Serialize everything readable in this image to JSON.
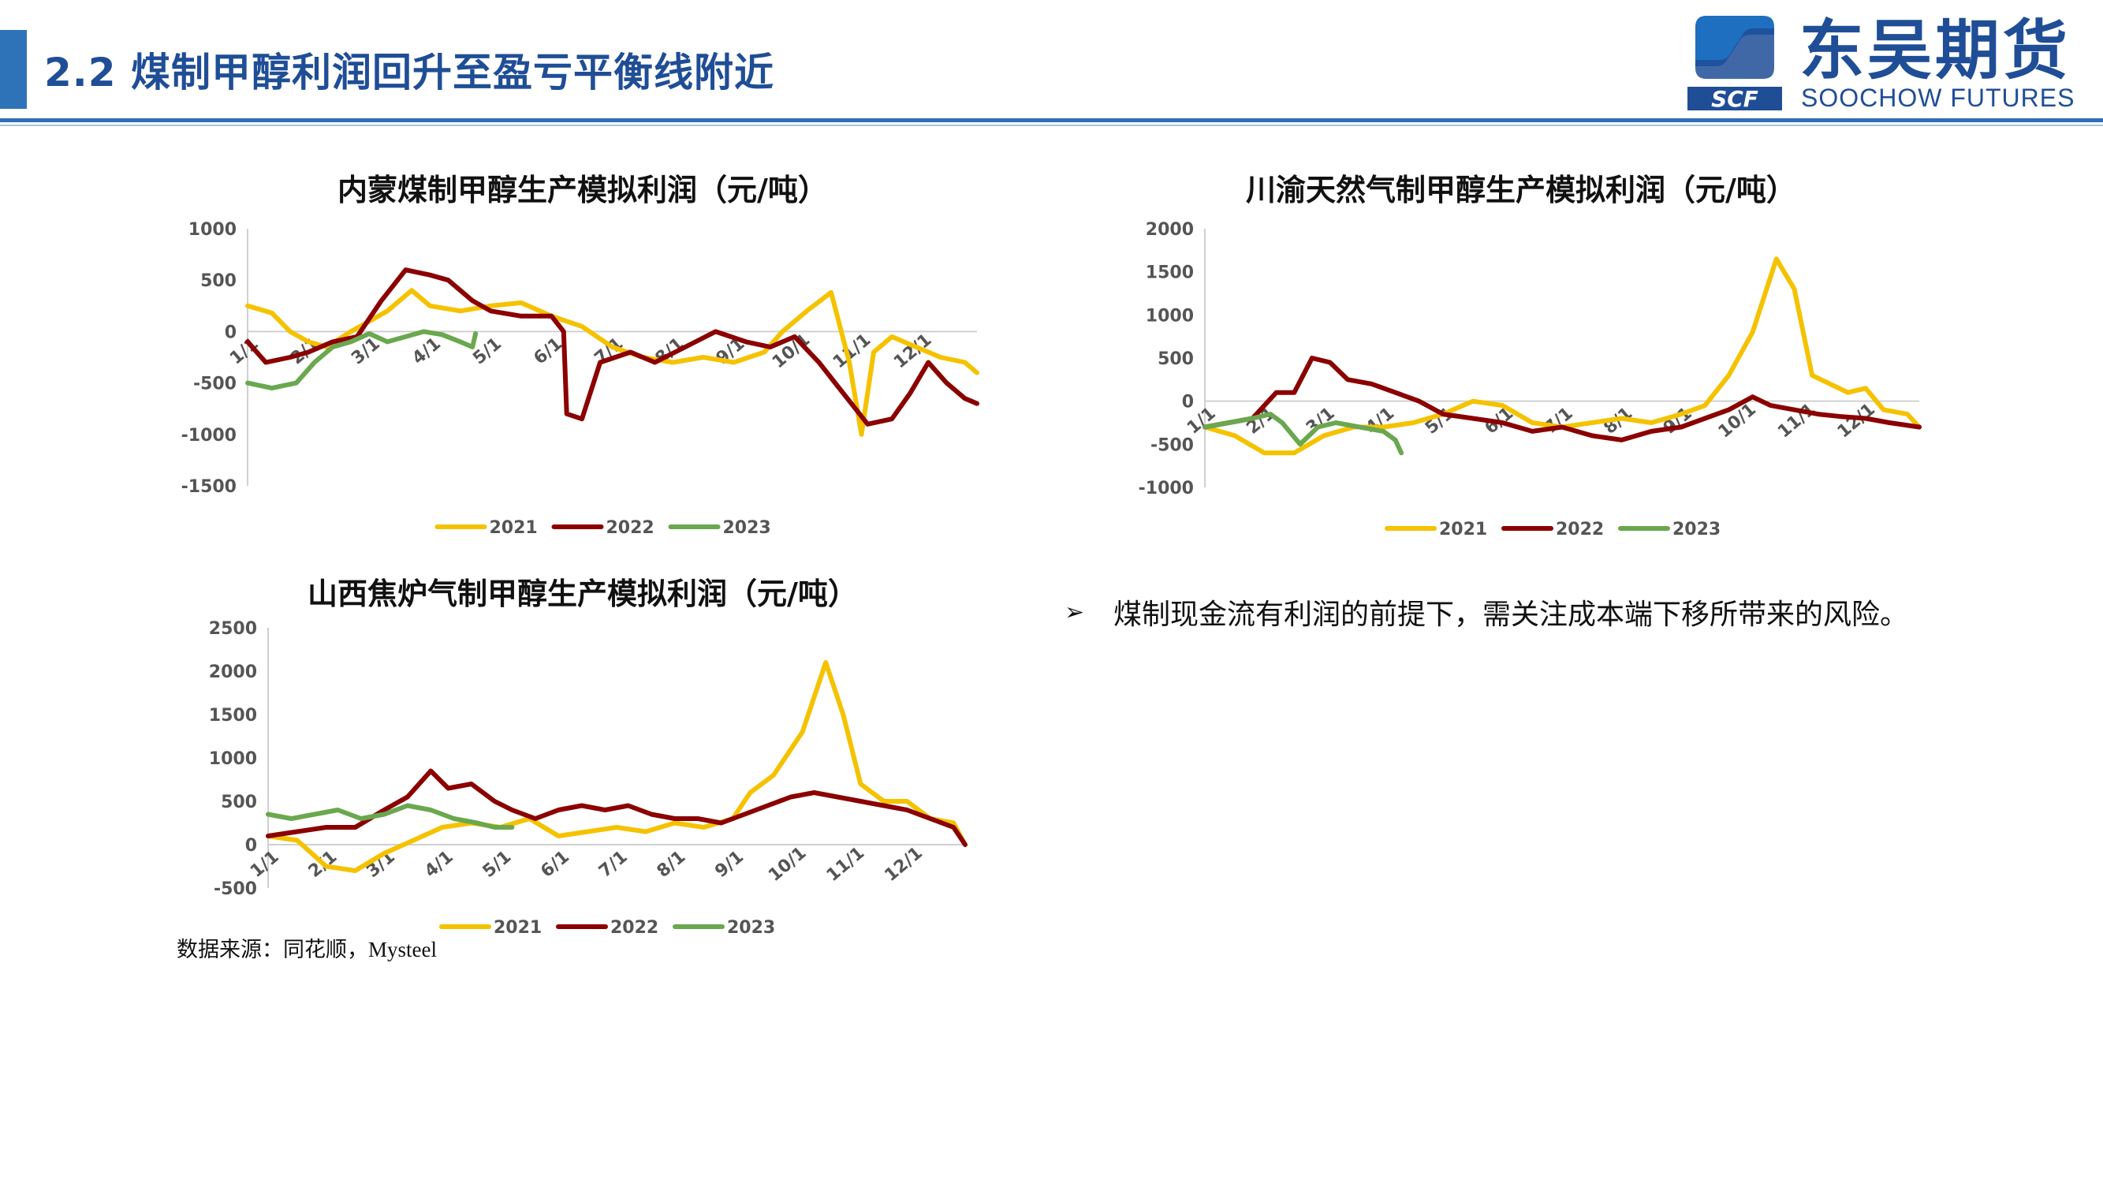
{
  "header": {
    "title": "2.2 煤制甲醇利润回升至盈亏平衡线附近",
    "logo_cn": "东吴期货",
    "logo_en": "SOOCHOW FUTURES",
    "logo_mark": "SCF"
  },
  "colors": {
    "brand_blue": "#1f4e96",
    "accent": "#2e73b8",
    "series_2021": "#f5c200",
    "series_2022": "#8b0000",
    "series_2023": "#6aa84f"
  },
  "bullet": {
    "marker": "➢",
    "text": "煤制现金流有利润的前提下，需关注成本端下移所带来的风险。"
  },
  "source": "数据来源：同花顺，Mysteel",
  "chart_data": [
    {
      "id": "inner-mongolia",
      "type": "line",
      "title": "内蒙煤制甲醇生产模拟利润（元/吨）",
      "ylim": [
        -1500,
        1000
      ],
      "yticks": [
        1000,
        500,
        0,
        -500,
        -1000,
        -1500
      ],
      "ytick_labels": [
        "1000",
        "500",
        "0",
        "-500",
        "-1000",
        "-1500"
      ],
      "xlim": [
        1,
        13
      ],
      "xticks": [
        1,
        2,
        3,
        4,
        5,
        6,
        7,
        8,
        9,
        10,
        11,
        12
      ],
      "xtick_labels": [
        "1/1",
        "2/1",
        "3/1",
        "4/1",
        "5/1",
        "6/1",
        "7/1",
        "8/1",
        "9/1",
        "10/1",
        "11/1",
        "12/1"
      ],
      "grid": false,
      "legend_position": "bottom",
      "series": [
        {
          "name": "2021",
          "points": [
            [
              1,
              250
            ],
            [
              1.4,
              180
            ],
            [
              1.7,
              0
            ],
            [
              2,
              -100
            ],
            [
              2.3,
              -150
            ],
            [
              2.7,
              0
            ],
            [
              3,
              100
            ],
            [
              3.3,
              200
            ],
            [
              3.7,
              400
            ],
            [
              4,
              250
            ],
            [
              4.5,
              200
            ],
            [
              5,
              250
            ],
            [
              5.5,
              280
            ],
            [
              6,
              150
            ],
            [
              6.5,
              50
            ],
            [
              7,
              -150
            ],
            [
              7.5,
              -250
            ],
            [
              8,
              -300
            ],
            [
              8.5,
              -250
            ],
            [
              9,
              -300
            ],
            [
              9.5,
              -200
            ],
            [
              9.8,
              0
            ],
            [
              10.2,
              200
            ],
            [
              10.6,
              380
            ],
            [
              10.9,
              -300
            ],
            [
              11.1,
              -1000
            ],
            [
              11.3,
              -200
            ],
            [
              11.6,
              -50
            ],
            [
              12,
              -150
            ],
            [
              12.4,
              -250
            ],
            [
              12.8,
              -300
            ],
            [
              13,
              -400
            ]
          ]
        },
        {
          "name": "2022",
          "points": [
            [
              1,
              -100
            ],
            [
              1.3,
              -300
            ],
            [
              1.7,
              -250
            ],
            [
              2,
              -200
            ],
            [
              2.4,
              -100
            ],
            [
              2.8,
              -50
            ],
            [
              3.2,
              300
            ],
            [
              3.6,
              600
            ],
            [
              4,
              550
            ],
            [
              4.3,
              500
            ],
            [
              4.7,
              300
            ],
            [
              5,
              200
            ],
            [
              5.5,
              150
            ],
            [
              6,
              150
            ],
            [
              6.2,
              0
            ],
            [
              6.25,
              -800
            ],
            [
              6.5,
              -850
            ],
            [
              6.8,
              -300
            ],
            [
              7.3,
              -200
            ],
            [
              7.7,
              -300
            ],
            [
              8.2,
              -150
            ],
            [
              8.7,
              0
            ],
            [
              9.2,
              -100
            ],
            [
              9.6,
              -150
            ],
            [
              10,
              -50
            ],
            [
              10.4,
              -300
            ],
            [
              10.8,
              -600
            ],
            [
              11.2,
              -900
            ],
            [
              11.6,
              -850
            ],
            [
              11.9,
              -600
            ],
            [
              12.2,
              -300
            ],
            [
              12.5,
              -500
            ],
            [
              12.8,
              -650
            ],
            [
              13,
              -700
            ]
          ]
        },
        {
          "name": "2023",
          "points": [
            [
              1,
              -500
            ],
            [
              1.4,
              -550
            ],
            [
              1.8,
              -500
            ],
            [
              2.1,
              -300
            ],
            [
              2.4,
              -150
            ],
            [
              2.7,
              -100
            ],
            [
              3,
              -20
            ],
            [
              3.3,
              -100
            ],
            [
              3.6,
              -50
            ],
            [
              3.9,
              0
            ],
            [
              4.2,
              -30
            ],
            [
              4.5,
              -100
            ],
            [
              4.7,
              -150
            ],
            [
              4.75,
              -20
            ]
          ]
        }
      ]
    },
    {
      "id": "sichuan-chongqing",
      "type": "line",
      "title": "川渝天然气制甲醇生产模拟利润（元/吨）",
      "ylim": [
        -1000,
        2000
      ],
      "yticks": [
        2000,
        1500,
        1000,
        500,
        0,
        -500,
        -1000
      ],
      "ytick_labels": [
        "2000",
        "1500",
        "1000",
        "500",
        "0",
        "-500",
        "-1000"
      ],
      "xlim": [
        1,
        13
      ],
      "xticks": [
        1,
        2,
        3,
        4,
        5,
        6,
        7,
        8,
        9,
        10,
        11,
        12
      ],
      "xtick_labels": [
        "1/1",
        "2/1",
        "3/1",
        "4/1",
        "5/1",
        "6/1",
        "7/1",
        "8/1",
        "9/1",
        "10/1",
        "11/1",
        "12/1"
      ],
      "grid": false,
      "legend_position": "bottom",
      "series": [
        {
          "name": "2021",
          "points": [
            [
              1,
              -300
            ],
            [
              1.5,
              -400
            ],
            [
              2,
              -600
            ],
            [
              2.5,
              -600
            ],
            [
              3,
              -400
            ],
            [
              3.5,
              -300
            ],
            [
              4,
              -300
            ],
            [
              4.5,
              -250
            ],
            [
              5,
              -150
            ],
            [
              5.5,
              0
            ],
            [
              6,
              -50
            ],
            [
              6.5,
              -250
            ],
            [
              7,
              -300
            ],
            [
              7.5,
              -250
            ],
            [
              8,
              -200
            ],
            [
              8.5,
              -250
            ],
            [
              9,
              -150
            ],
            [
              9.4,
              -50
            ],
            [
              9.8,
              300
            ],
            [
              10.2,
              800
            ],
            [
              10.6,
              1650
            ],
            [
              10.9,
              1300
            ],
            [
              11.2,
              300
            ],
            [
              11.5,
              200
            ],
            [
              11.8,
              100
            ],
            [
              12.1,
              150
            ],
            [
              12.4,
              -100
            ],
            [
              12.8,
              -150
            ],
            [
              13,
              -300
            ]
          ]
        },
        {
          "name": "2022",
          "points": [
            [
              1,
              -300
            ],
            [
              1.4,
              -250
            ],
            [
              1.8,
              -200
            ],
            [
              2.2,
              100
            ],
            [
              2.5,
              100
            ],
            [
              2.8,
              500
            ],
            [
              3.1,
              450
            ],
            [
              3.4,
              250
            ],
            [
              3.8,
              200
            ],
            [
              4.2,
              100
            ],
            [
              4.6,
              0
            ],
            [
              5,
              -150
            ],
            [
              5.5,
              -200
            ],
            [
              6,
              -250
            ],
            [
              6.5,
              -350
            ],
            [
              7,
              -300
            ],
            [
              7.5,
              -400
            ],
            [
              8,
              -450
            ],
            [
              8.5,
              -350
            ],
            [
              9,
              -300
            ],
            [
              9.4,
              -200
            ],
            [
              9.8,
              -100
            ],
            [
              10.2,
              50
            ],
            [
              10.5,
              -50
            ],
            [
              10.9,
              -100
            ],
            [
              11.3,
              -150
            ],
            [
              11.7,
              -180
            ],
            [
              12.1,
              -200
            ],
            [
              12.5,
              -250
            ],
            [
              13,
              -300
            ]
          ]
        },
        {
          "name": "2023",
          "points": [
            [
              1,
              -300
            ],
            [
              1.4,
              -250
            ],
            [
              1.8,
              -200
            ],
            [
              2.1,
              -150
            ],
            [
              2.3,
              -250
            ],
            [
              2.6,
              -500
            ],
            [
              2.9,
              -300
            ],
            [
              3.2,
              -250
            ],
            [
              3.6,
              -300
            ],
            [
              4,
              -350
            ],
            [
              4.2,
              -450
            ],
            [
              4.3,
              -600
            ]
          ]
        }
      ]
    },
    {
      "id": "shanxi-coke-oven",
      "type": "line",
      "title": "山西焦炉气制甲醇生产模拟利润（元/吨）",
      "ylim": [
        -500,
        2500
      ],
      "yticks": [
        2500,
        2000,
        1500,
        1000,
        500,
        0,
        -500
      ],
      "ytick_labels": [
        "2500",
        "2000",
        "1500",
        "1000",
        "500",
        "0",
        "-500"
      ],
      "xlim": [
        1,
        13
      ],
      "xticks": [
        1,
        2,
        3,
        4,
        5,
        6,
        7,
        8,
        9,
        10,
        11,
        12
      ],
      "xtick_labels": [
        "1/1",
        "2/1",
        "3/1",
        "4/1",
        "5/1",
        "6/1",
        "7/1",
        "8/1",
        "9/1",
        "10/1",
        "11/1",
        "12/1"
      ],
      "grid": false,
      "legend_position": "bottom",
      "series": [
        {
          "name": "2021",
          "points": [
            [
              1,
              100
            ],
            [
              1.5,
              50
            ],
            [
              2,
              -250
            ],
            [
              2.5,
              -300
            ],
            [
              3,
              -100
            ],
            [
              3.5,
              50
            ],
            [
              4,
              200
            ],
            [
              4.5,
              250
            ],
            [
              5,
              200
            ],
            [
              5.5,
              300
            ],
            [
              6,
              100
            ],
            [
              6.5,
              150
            ],
            [
              7,
              200
            ],
            [
              7.5,
              150
            ],
            [
              8,
              250
            ],
            [
              8.5,
              200
            ],
            [
              9,
              300
            ],
            [
              9.3,
              600
            ],
            [
              9.7,
              800
            ],
            [
              10.2,
              1300
            ],
            [
              10.6,
              2100
            ],
            [
              10.9,
              1500
            ],
            [
              11.2,
              700
            ],
            [
              11.6,
              500
            ],
            [
              12,
              500
            ],
            [
              12.4,
              300
            ],
            [
              12.8,
              250
            ],
            [
              13,
              0
            ]
          ]
        },
        {
          "name": "2022",
          "points": [
            [
              1,
              100
            ],
            [
              1.5,
              150
            ],
            [
              2,
              200
            ],
            [
              2.5,
              200
            ],
            [
              3,
              400
            ],
            [
              3.4,
              550
            ],
            [
              3.8,
              850
            ],
            [
              4.1,
              650
            ],
            [
              4.5,
              700
            ],
            [
              4.9,
              500
            ],
            [
              5.2,
              400
            ],
            [
              5.6,
              300
            ],
            [
              6,
              400
            ],
            [
              6.4,
              450
            ],
            [
              6.8,
              400
            ],
            [
              7.2,
              450
            ],
            [
              7.6,
              350
            ],
            [
              8,
              300
            ],
            [
              8.4,
              300
            ],
            [
              8.8,
              250
            ],
            [
              9.2,
              350
            ],
            [
              9.6,
              450
            ],
            [
              10,
              550
            ],
            [
              10.4,
              600
            ],
            [
              10.8,
              550
            ],
            [
              11.2,
              500
            ],
            [
              11.6,
              450
            ],
            [
              12,
              400
            ],
            [
              12.4,
              300
            ],
            [
              12.8,
              200
            ],
            [
              13,
              0
            ]
          ]
        },
        {
          "name": "2023",
          "points": [
            [
              1,
              350
            ],
            [
              1.4,
              300
            ],
            [
              1.8,
              350
            ],
            [
              2.2,
              400
            ],
            [
              2.6,
              300
            ],
            [
              3,
              350
            ],
            [
              3.4,
              450
            ],
            [
              3.8,
              400
            ],
            [
              4.2,
              300
            ],
            [
              4.6,
              250
            ],
            [
              4.9,
              200
            ],
            [
              5.2,
              200
            ]
          ]
        }
      ]
    }
  ]
}
